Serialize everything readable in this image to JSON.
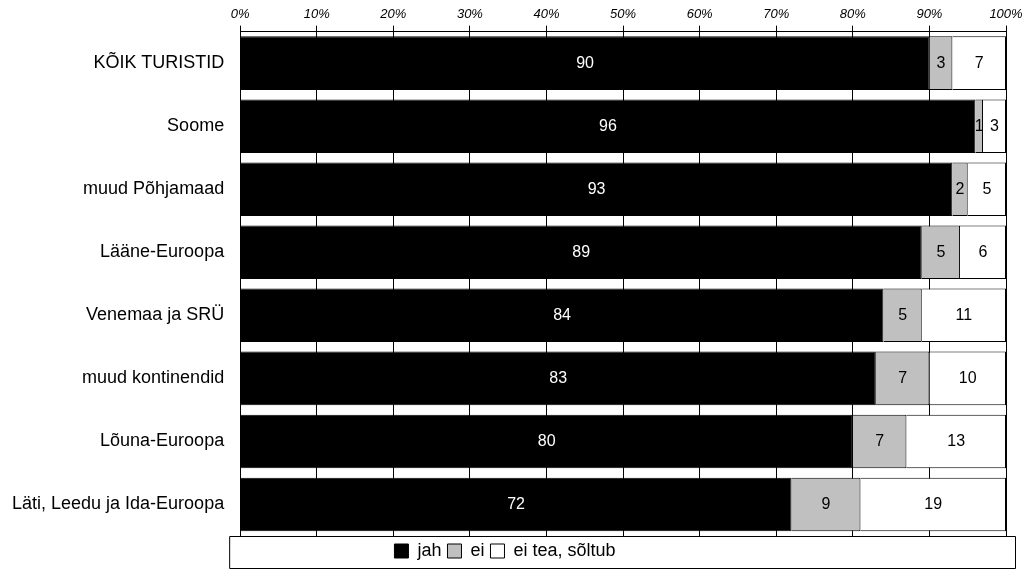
{
  "chart_data": {
    "type": "bar",
    "orientation": "horizontal",
    "stacked": true,
    "data_labels": true,
    "grid": "x",
    "legend": "bottom",
    "categories": [
      "KÕIK TURISTID",
      "Soome",
      "muud Põhjamaad",
      "Lääne-Euroopa",
      "Venemaa ja SRÜ",
      "muud kontinendid",
      "Lõuna-Euroopa",
      "Läti, Leedu ja Ida-Euroopa"
    ],
    "xlim": [
      0,
      100
    ],
    "xticks": [
      {
        "value": 0,
        "label": "0%"
      },
      {
        "value": 10,
        "label": "10%"
      },
      {
        "value": 20,
        "label": "20%"
      },
      {
        "value": 30,
        "label": "30%"
      },
      {
        "value": 40,
        "label": "40%"
      },
      {
        "value": 50,
        "label": "50%"
      },
      {
        "value": 60,
        "label": "60%"
      },
      {
        "value": 70,
        "label": "70%"
      },
      {
        "value": 80,
        "label": "80%"
      },
      {
        "value": 90,
        "label": "90%"
      },
      {
        "value": 100,
        "label": "100%"
      }
    ],
    "series": [
      {
        "name": "jah",
        "color": "#000000",
        "values": [
          90,
          96,
          93,
          89,
          84,
          83,
          80,
          72
        ]
      },
      {
        "name": "ei",
        "color": "#c0c0c0",
        "values": [
          3,
          1,
          2,
          5,
          5,
          7,
          7,
          9
        ]
      },
      {
        "name": "ei tea, sõltub",
        "color": "#ffffff",
        "values": [
          7,
          3,
          5,
          6,
          11,
          10,
          13,
          19
        ]
      }
    ]
  }
}
